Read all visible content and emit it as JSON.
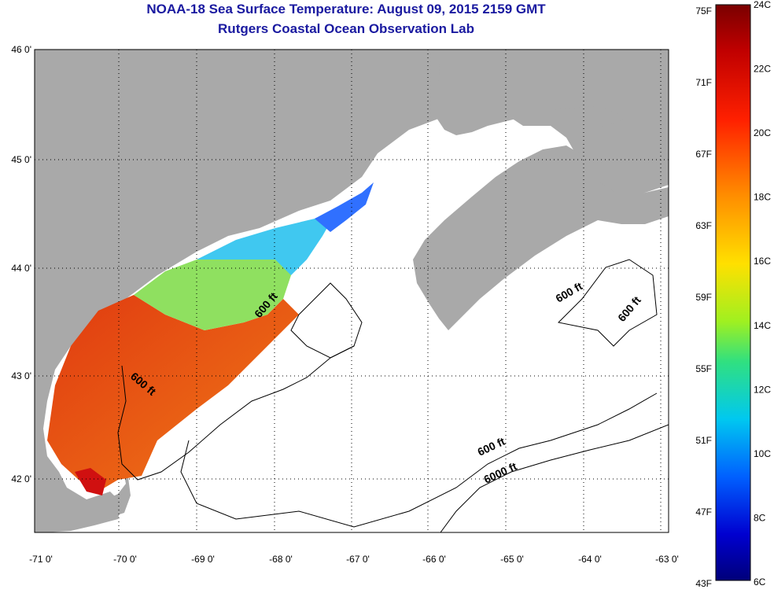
{
  "title": "NOAA-18 Sea Surface Temperature:  August 09, 2015 2159 GMT",
  "subtitle": "Rutgers Coastal Ocean Observation Lab",
  "lat_ticks": [
    "46 0'",
    "45 0'",
    "44 0'",
    "43 0'",
    "42 0'"
  ],
  "lon_ticks": [
    "-71 0'",
    "-70 0'",
    "-69 0'",
    "-68 0'",
    "-67 0'",
    "-66 0'",
    "-65 0'",
    "-64 0'",
    "-63 0'"
  ],
  "contour_labels": [
    "600 ft",
    "600 ft",
    "600 ft",
    "600 ft",
    "600 ft",
    "6000 ft"
  ],
  "colorbar": {
    "f_labels": [
      "75F",
      "71F",
      "67F",
      "63F",
      "59F",
      "55F",
      "51F",
      "47F",
      "43F"
    ],
    "c_labels": [
      "24C",
      "22C",
      "20C",
      "18C",
      "16C",
      "14C",
      "12C",
      "10C",
      "8C",
      "6C"
    ]
  },
  "colors": {
    "land": "#a9a9a9",
    "title": "#1a1aa0"
  }
}
